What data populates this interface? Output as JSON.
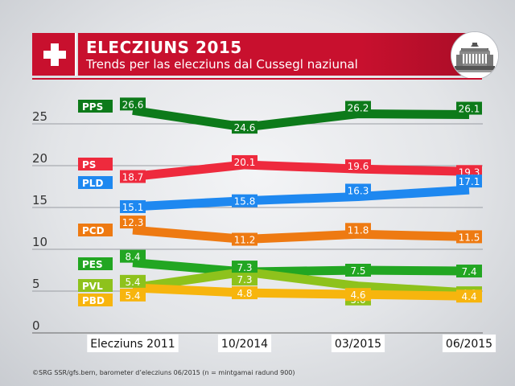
{
  "header": {
    "title": "ELECZIUNS 2015",
    "subtitle": "Trends per las elecziuns dal Cussegl naziunal"
  },
  "source": "©SRG SSR/gfs.bern, barometer d’elecziuns 06/2015 (n = mintgamai radund 900)",
  "chart_data": {
    "type": "line",
    "title": "ELECZIUNS 2015",
    "subtitle": "Trends per las elecziuns dal Cussegl naziunal",
    "categories": [
      "Elecziuns 2011",
      "10/2014",
      "03/2015",
      "06/2015"
    ],
    "ylim": [
      0,
      28
    ],
    "yticks": [
      "0",
      "5",
      "10",
      "15",
      "20",
      "25"
    ],
    "ytick_values": [
      0,
      5,
      10,
      15,
      20,
      25
    ],
    "grid": true,
    "series": [
      {
        "name": "PPS",
        "color": "#0d7a1a",
        "values": [
          26.6,
          24.6,
          26.2,
          26.1
        ],
        "labels": [
          "26.6",
          "24.6",
          "26.2",
          "26.1"
        ]
      },
      {
        "name": "PS",
        "color": "#ee2a3d",
        "values": [
          18.7,
          20.1,
          19.6,
          19.3
        ],
        "labels": [
          "18.7",
          "20.1",
          "19.6",
          "19.3"
        ]
      },
      {
        "name": "PLD",
        "color": "#1e88f0",
        "values": [
          15.1,
          15.8,
          16.3,
          17.1
        ],
        "labels": [
          "15.1",
          "15.8",
          "16.3",
          "17.1"
        ]
      },
      {
        "name": "PCD",
        "color": "#ee7a12",
        "values": [
          12.3,
          11.2,
          11.8,
          11.5
        ],
        "labels": [
          "12.3",
          "11.2",
          "11.8",
          "11.5"
        ]
      },
      {
        "name": "PES",
        "color": "#22a622",
        "values": [
          8.4,
          7.3,
          7.5,
          7.4
        ],
        "labels": [
          "8.4",
          "7.3",
          "7.5",
          "7.4"
        ]
      },
      {
        "name": "PVL",
        "color": "#8ec21c",
        "values": [
          5.4,
          7.3,
          5.6,
          4.8
        ],
        "labels": [
          "5.4",
          "7.3",
          "5.6",
          "4.8"
        ]
      },
      {
        "name": "PBD",
        "color": "#f7b50e",
        "values": [
          5.4,
          4.8,
          4.6,
          4.4
        ],
        "labels": [
          "5.4",
          "4.8",
          "4.6",
          "4.4"
        ]
      }
    ]
  }
}
